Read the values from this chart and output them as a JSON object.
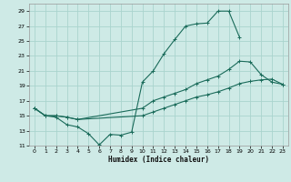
{
  "xlabel": "Humidex (Indice chaleur)",
  "bg_color": "#ceeae6",
  "grid_color": "#aad4ce",
  "line_color": "#1a6b5a",
  "xlim": [
    -0.5,
    23.5
  ],
  "ylim": [
    11,
    30
  ],
  "yticks": [
    11,
    13,
    15,
    17,
    19,
    21,
    23,
    25,
    27,
    29
  ],
  "xticks": [
    0,
    1,
    2,
    3,
    4,
    5,
    6,
    7,
    8,
    9,
    10,
    11,
    12,
    13,
    14,
    15,
    16,
    17,
    18,
    19,
    20,
    21,
    22,
    23
  ],
  "line1_x": [
    0,
    1,
    2,
    3,
    4,
    5,
    6,
    7,
    8,
    9,
    10,
    11,
    12,
    13,
    14,
    15,
    16,
    17,
    18,
    19
  ],
  "line1_y": [
    16,
    15,
    14.8,
    13.8,
    13.5,
    12.6,
    11.1,
    12.5,
    12.4,
    12.8,
    19.5,
    21,
    23.3,
    25.2,
    27,
    27.3,
    27.4,
    29,
    29,
    25.5
  ],
  "line2_x": [
    0,
    1,
    2,
    3,
    4,
    10,
    11,
    12,
    13,
    14,
    15,
    16,
    17,
    18,
    19,
    20,
    21,
    22,
    23
  ],
  "line2_y": [
    16,
    15,
    15,
    14.8,
    14.5,
    16,
    17,
    17.5,
    18,
    18.5,
    19.3,
    19.8,
    20.3,
    21.2,
    22.3,
    22.2,
    20.5,
    19.5,
    19.2
  ],
  "line3_x": [
    0,
    1,
    2,
    3,
    4,
    10,
    11,
    12,
    13,
    14,
    15,
    16,
    17,
    18,
    19,
    20,
    21,
    22,
    23
  ],
  "line3_y": [
    16,
    15,
    15,
    14.8,
    14.5,
    15,
    15.5,
    16,
    16.5,
    17,
    17.5,
    17.8,
    18.2,
    18.7,
    19.3,
    19.6,
    19.8,
    19.9,
    19.2
  ]
}
